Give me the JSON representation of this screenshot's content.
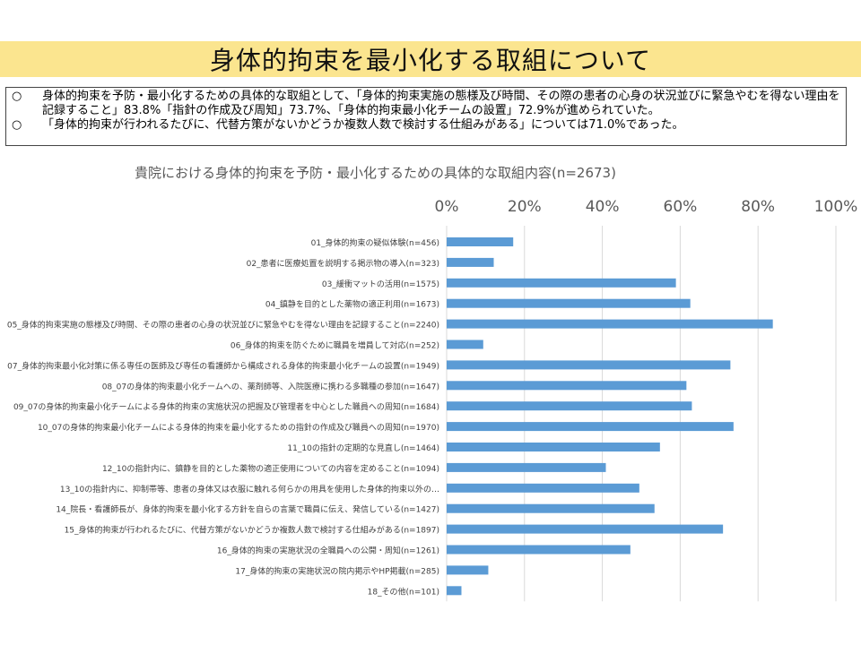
{
  "page": {
    "title": "身体的拘束を最小化する取組について",
    "summary": [
      {
        "bullet": "○",
        "text": "身体的拘束を予防・最小化するための具体的な取組として、「身体的拘束実施の態様及び時間、その際の患者の心身の状況並びに緊急やむを得ない理由を記録すること」83.8%「指針の作成及び周知」73.7%、「身体的拘束最小化チームの設置」72.9%が進められていた。"
      },
      {
        "bullet": "○",
        "text": "「身体的拘束が行われるたびに、代替方策がないかどうか複数人数で検討する仕組みがある」については71.0%であった。"
      }
    ]
  },
  "chart_data": {
    "type": "bar",
    "orientation": "horizontal",
    "title": "貴院における身体的拘束を予防・最小化するための具体的な取組内容(n=2673)",
    "xlim": [
      0,
      100
    ],
    "x_ticks": [
      "0%",
      "20%",
      "40%",
      "60%",
      "80%",
      "100%"
    ],
    "x_axis_position": "top",
    "grid": "vertical",
    "bar_color": "#5b9bd5",
    "categories": [
      "01_身体的拘束の疑似体験(n=456)",
      "02_患者に医療処置を説明する掲示物の導入(n=323)",
      "03_緩衝マットの活用(n=1575)",
      "04_鎮静を目的とした薬物の適正利用(n=1673)",
      "05_身体的拘束実施の態様及び時間、その際の患者の心身の状況並びに緊急やむを得ない理由を記録すること(n=2240)",
      "06_身体的拘束を防ぐために職員を増員して対応(n=252)",
      "07_身体的拘束最小化対策に係る専任の医師及び専任の看護師から構成される身体的拘束最小化チームの設置(n=1949)",
      "08_07の身体的拘束最小化チームへの、薬剤師等、入院医療に携わる多職種の参加(n=1647)",
      "09_07の身体的拘束最小化チームによる身体的拘束の実施状況の把握及び管理者を中心とした職員への周知(n=1684)",
      "10_07の身体的拘束最小化チームによる身体的拘束を最小化するための指針の作成及び職員への周知(n=1970)",
      "11_10の指針の定期的な見直し(n=1464)",
      "12_10の指針内に、鎮静を目的とした薬物の適正使用についての内容を定めること(n=1094)",
      "13_10の指針内に、抑制帯等、患者の身体又は衣服に触れる何らかの用具を使用した身体的拘束以外の…",
      "14_院長・看護師長が、身体的拘束を最小化する方針を自らの言葉で職員に伝え、発信している(n=1427)",
      "15_身体的拘束が行われるたびに、代替方策がないかどうか複数人数で検討する仕組みがある(n=1897)",
      "16_身体的拘束の実施状況の全職員への公開・周知(n=1261)",
      "17_身体的拘束の実施状況の院内掲示やHP掲載(n=285)",
      "18_その他(n=101)"
    ],
    "values": [
      17.1,
      12.1,
      58.9,
      62.6,
      83.8,
      9.4,
      72.9,
      61.6,
      63.0,
      73.7,
      54.8,
      40.9,
      49.5,
      53.4,
      71.0,
      47.2,
      10.7,
      3.8
    ]
  }
}
